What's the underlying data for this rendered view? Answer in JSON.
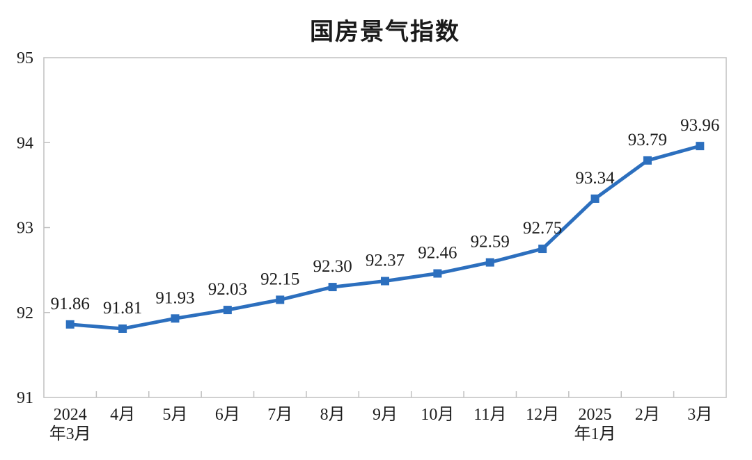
{
  "page": {
    "background": "#ffffff"
  },
  "chart_data": {
    "type": "line",
    "title": "国房景气指数",
    "xlabel": "",
    "ylabel": "",
    "categories": [
      "2024年3月",
      "4月",
      "5月",
      "6月",
      "7月",
      "8月",
      "9月",
      "10月",
      "11月",
      "12月",
      "2025年1月",
      "2月",
      "3月"
    ],
    "x_tick_labels_wrapped": [
      [
        "2024",
        "年3月"
      ],
      [
        "4月"
      ],
      [
        "5月"
      ],
      [
        "6月"
      ],
      [
        "7月"
      ],
      [
        "8月"
      ],
      [
        "9月"
      ],
      [
        "10月"
      ],
      [
        "11月"
      ],
      [
        "12月"
      ],
      [
        "2025",
        "年1月"
      ],
      [
        "2月"
      ],
      [
        "3月"
      ]
    ],
    "series": [
      {
        "name": "国房景气指数",
        "values": [
          91.86,
          91.81,
          91.93,
          92.03,
          92.15,
          92.3,
          92.37,
          92.46,
          92.59,
          92.75,
          93.34,
          93.79,
          93.96
        ]
      }
    ],
    "data_labels": [
      "91.86",
      "91.81",
      "91.93",
      "92.03",
      "92.15",
      "92.30",
      "92.37",
      "92.46",
      "92.59",
      "92.75",
      "93.34",
      "93.79",
      "93.96"
    ],
    "ylim": [
      91,
      95
    ],
    "yticks": [
      91,
      92,
      93,
      94,
      95
    ],
    "grid": "off",
    "legend": "none",
    "marker": "square",
    "colors": {
      "line": "#2c6fbe",
      "marker": "#2c6fbe",
      "axis": "#c0c0c0",
      "tick_text": "#1c1c1c",
      "data_label_text": "#1c1c1c",
      "title_text": "#1a1a1a"
    }
  }
}
